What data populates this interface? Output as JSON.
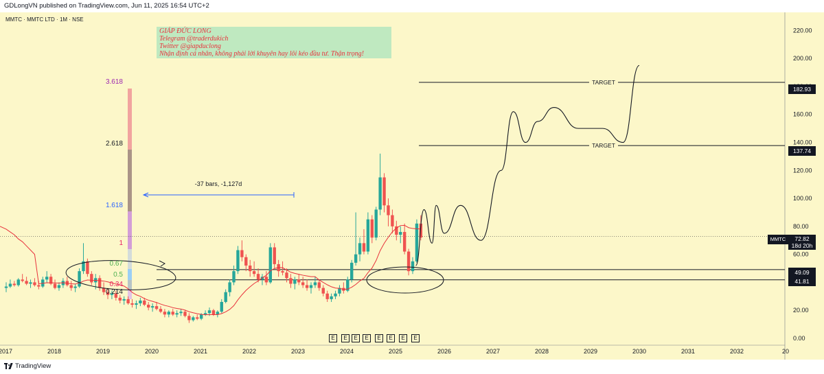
{
  "header": {
    "published_line": "GDLongVN published on TradingView.com, Jun 11, 2025 16:54 UTC+2",
    "symbol_line": "MMTC · MMTC LTD · 1M · NSE"
  },
  "note": {
    "line1": "GIÁP ĐỨC LONG",
    "line2": "Telegram @traderdukich",
    "line3": "Twitter @giapduclong",
    "line4": "Nhận định cá nhân, không phải lời khuyên hay lôi kéo đầu tư. Thận trọng!"
  },
  "measure_label": "-37 bars, -1,127d",
  "fib_levels": [
    {
      "label": "3.618",
      "color": "#9c27b0"
    },
    {
      "label": "2.618",
      "color": "#131722"
    },
    {
      "label": "1.618",
      "color": "#2962ff"
    },
    {
      "label": "1",
      "color": "#e91e63"
    },
    {
      "label": "0.67",
      "color": "#4caf50"
    },
    {
      "label": "0.5",
      "color": "#4caf50"
    },
    {
      "label": "0.34",
      "color": "#e91e63"
    },
    {
      "label": "0.214",
      "color": "#131722"
    }
  ],
  "targets": [
    {
      "label": "TARGET",
      "price_label": "182.93"
    },
    {
      "label": "TARGET",
      "price_label": "137.74"
    }
  ],
  "support_levels": [
    "49.09",
    "41.81"
  ],
  "current_price": {
    "tag": "MMTC",
    "price": "72.82",
    "countdown": "18d 20h"
  },
  "earnings_marker": "E",
  "footer": {
    "brand": "TradingView"
  },
  "colors": {
    "background": "#fcf7c9",
    "up_candle": "#26a69a",
    "down_candle": "#ef5350",
    "moving_average": "#e8323c",
    "annotation": "#131722"
  },
  "chart_data": {
    "type": "candlestick",
    "title": "MMTC · MMTC LTD · 1M · NSE",
    "x_tick_labels": [
      "2017",
      "2018",
      "2019",
      "2020",
      "2021",
      "2022",
      "2023",
      "2024",
      "2025",
      "2026",
      "2027",
      "2028",
      "2029",
      "2030",
      "2031",
      "2032",
      "20"
    ],
    "y_tick_labels": [
      "0.00",
      "20.00",
      "40.00",
      "60.00",
      "80.00",
      "100.00",
      "120.00",
      "140.00",
      "160.00",
      "180.00",
      "200.00",
      "220.00"
    ],
    "ylim": [
      0,
      230
    ],
    "candles_ohlc": [
      [
        36,
        40,
        33,
        37
      ],
      [
        37,
        42,
        36,
        39
      ],
      [
        39,
        41,
        37,
        38
      ],
      [
        38,
        43,
        37,
        42
      ],
      [
        42,
        46,
        40,
        41
      ],
      [
        41,
        44,
        38,
        39
      ],
      [
        39,
        42,
        36,
        40
      ],
      [
        40,
        43,
        37,
        38
      ],
      [
        38,
        41,
        35,
        37
      ],
      [
        37,
        44,
        36,
        42
      ],
      [
        42,
        48,
        40,
        44
      ],
      [
        44,
        46,
        38,
        39
      ],
      [
        39,
        42,
        35,
        36
      ],
      [
        36,
        40,
        34,
        38
      ],
      [
        38,
        43,
        36,
        41
      ],
      [
        41,
        44,
        37,
        38
      ],
      [
        38,
        41,
        34,
        36
      ],
      [
        36,
        39,
        33,
        37
      ],
      [
        37,
        50,
        36,
        48
      ],
      [
        48,
        68,
        46,
        55
      ],
      [
        55,
        57,
        44,
        46
      ],
      [
        46,
        48,
        38,
        40
      ],
      [
        40,
        46,
        35,
        43
      ],
      [
        43,
        45,
        34,
        36
      ],
      [
        36,
        40,
        31,
        33
      ],
      [
        33,
        36,
        28,
        31
      ],
      [
        31,
        34,
        28,
        32
      ],
      [
        32,
        34,
        27,
        29
      ],
      [
        29,
        31,
        25,
        27
      ],
      [
        27,
        30,
        24,
        28
      ],
      [
        28,
        30,
        24,
        25
      ],
      [
        25,
        28,
        22,
        24
      ],
      [
        24,
        27,
        21,
        25
      ],
      [
        25,
        29,
        23,
        27
      ],
      [
        27,
        29,
        23,
        24
      ],
      [
        24,
        26,
        20,
        22
      ],
      [
        22,
        25,
        19,
        23
      ],
      [
        23,
        26,
        20,
        21
      ],
      [
        21,
        23,
        18,
        19
      ],
      [
        19,
        21,
        15,
        17
      ],
      [
        17,
        20,
        15,
        19
      ],
      [
        19,
        21,
        16,
        17
      ],
      [
        17,
        20,
        15,
        18
      ],
      [
        18,
        21,
        16,
        19
      ],
      [
        19,
        20,
        15,
        16
      ],
      [
        16,
        18,
        11,
        13
      ],
      [
        13,
        16,
        12,
        15
      ],
      [
        15,
        17,
        13,
        14
      ],
      [
        14,
        18,
        13,
        17
      ],
      [
        17,
        20,
        16,
        18
      ],
      [
        18,
        22,
        16,
        20
      ],
      [
        20,
        21,
        16,
        17
      ],
      [
        17,
        20,
        15,
        19
      ],
      [
        19,
        28,
        18,
        26
      ],
      [
        26,
        35,
        25,
        33
      ],
      [
        33,
        42,
        30,
        40
      ],
      [
        40,
        52,
        38,
        48
      ],
      [
        48,
        66,
        46,
        63
      ],
      [
        63,
        70,
        55,
        58
      ],
      [
        58,
        60,
        48,
        52
      ],
      [
        52,
        56,
        44,
        48
      ],
      [
        48,
        55,
        44,
        46
      ],
      [
        46,
        50,
        40,
        42
      ],
      [
        42,
        46,
        38,
        44
      ],
      [
        44,
        48,
        38,
        40
      ],
      [
        40,
        68,
        39,
        65
      ],
      [
        65,
        68,
        50,
        53
      ],
      [
        53,
        56,
        44,
        48
      ],
      [
        48,
        55,
        45,
        47
      ],
      [
        47,
        50,
        40,
        43
      ],
      [
        43,
        46,
        36,
        39
      ],
      [
        39,
        44,
        35,
        42
      ],
      [
        42,
        46,
        38,
        40
      ],
      [
        40,
        44,
        36,
        38
      ],
      [
        38,
        42,
        34,
        36
      ],
      [
        36,
        40,
        32,
        38
      ],
      [
        38,
        44,
        36,
        40
      ],
      [
        40,
        42,
        34,
        36
      ],
      [
        36,
        38,
        30,
        32
      ],
      [
        32,
        34,
        26,
        28
      ],
      [
        28,
        32,
        26,
        30
      ],
      [
        30,
        34,
        28,
        32
      ],
      [
        32,
        38,
        30,
        36
      ],
      [
        36,
        40,
        32,
        34
      ],
      [
        34,
        44,
        33,
        42
      ],
      [
        42,
        56,
        40,
        54
      ],
      [
        54,
        90,
        52,
        60
      ],
      [
        60,
        72,
        55,
        68
      ],
      [
        68,
        78,
        60,
        62
      ],
      [
        62,
        90,
        60,
        85
      ],
      [
        85,
        88,
        68,
        72
      ],
      [
        72,
        94,
        70,
        92
      ],
      [
        92,
        132,
        88,
        115
      ],
      [
        115,
        118,
        90,
        95
      ],
      [
        95,
        100,
        80,
        88
      ],
      [
        88,
        92,
        75,
        80
      ],
      [
        80,
        84,
        70,
        74
      ],
      [
        74,
        80,
        68,
        76
      ],
      [
        76,
        82,
        60,
        62
      ],
      [
        62,
        64,
        45,
        48
      ],
      [
        48,
        58,
        46,
        55
      ],
      [
        55,
        85,
        54,
        82
      ],
      [
        82,
        88,
        70,
        72
      ]
    ],
    "targets": [
      182.93,
      137.74
    ],
    "support_levels": [
      49.09,
      41.81
    ],
    "current_price": 72.82,
    "fibonacci_extension": [
      3.618,
      2.618,
      1.618,
      1,
      0.67,
      0.5,
      0.34,
      0.214
    ],
    "projection_path": [
      [
        "2025-06",
        52
      ],
      [
        "2025-08",
        92
      ],
      [
        "2025-10",
        68
      ],
      [
        "2025-11",
        95
      ],
      [
        "2026-01",
        75
      ],
      [
        "2026-05",
        95
      ],
      [
        "2026-10",
        70
      ],
      [
        "2027-03",
        120
      ],
      [
        "2027-06",
        162
      ],
      [
        "2027-09",
        140
      ],
      [
        "2027-12",
        155
      ],
      [
        "2028-04",
        165
      ],
      [
        "2028-10",
        150
      ],
      [
        "2029-04",
        150
      ],
      [
        "2029-09",
        140
      ],
      [
        "2030-01",
        195
      ]
    ],
    "grid": false,
    "legend": "none"
  }
}
